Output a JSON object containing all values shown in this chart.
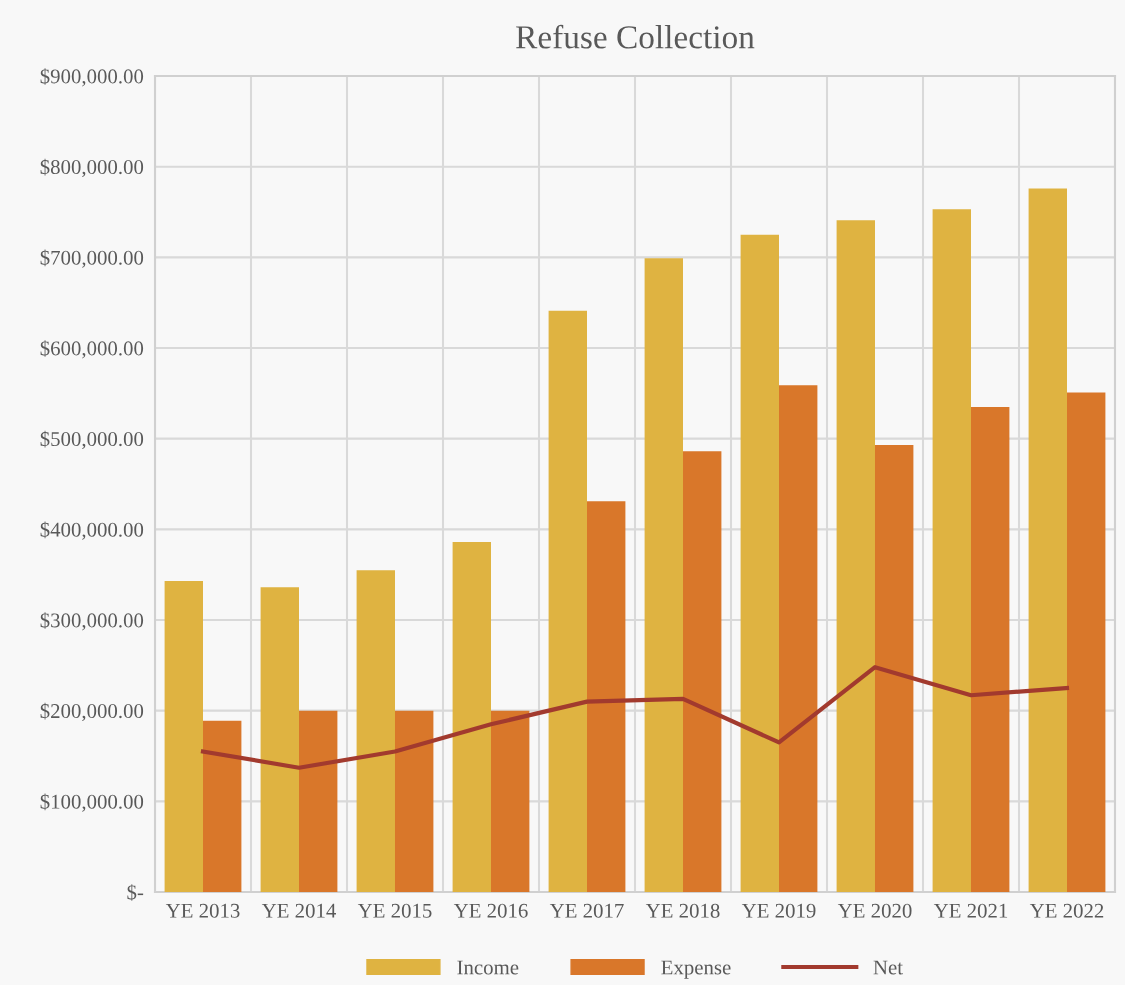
{
  "chart_data": {
    "type": "bar",
    "title": "Refuse Collection",
    "categories": [
      "YE 2013",
      "YE 2014",
      "YE 2015",
      "YE 2016",
      "YE 2017",
      "YE 2018",
      "YE 2019",
      "YE 2020",
      "YE 2021",
      "YE 2022"
    ],
    "series": [
      {
        "name": "Income",
        "color": "#dfb341",
        "values": [
          343000,
          336000,
          355000,
          386000,
          641000,
          699000,
          725000,
          741000,
          753000,
          776000
        ]
      },
      {
        "name": "Expense",
        "color": "#d9772a",
        "values": [
          189000,
          200000,
          200000,
          200000,
          431000,
          486000,
          559000,
          493000,
          535000,
          551000
        ]
      },
      {
        "name": "Net",
        "type": "line",
        "color": "#a23a2e",
        "values": [
          155000,
          137000,
          155000,
          185000,
          210000,
          213000,
          165000,
          248000,
          217000,
          225000
        ]
      }
    ],
    "ylim": [
      0,
      900000
    ],
    "yticks": [
      {
        "value": 0,
        "label": "$-"
      },
      {
        "value": 100000,
        "label": "$100,000.00"
      },
      {
        "value": 200000,
        "label": "$200,000.00"
      },
      {
        "value": 300000,
        "label": "$300,000.00"
      },
      {
        "value": 400000,
        "label": "$400,000.00"
      },
      {
        "value": 500000,
        "label": "$500,000.00"
      },
      {
        "value": 600000,
        "label": "$600,000.00"
      },
      {
        "value": 700000,
        "label": "$700,000.00"
      },
      {
        "value": 800000,
        "label": "$800,000.00"
      },
      {
        "value": 900000,
        "label": "$900,000.00"
      }
    ],
    "grid": true,
    "legend": "bottom",
    "marker": "none",
    "line_style": "solid"
  }
}
